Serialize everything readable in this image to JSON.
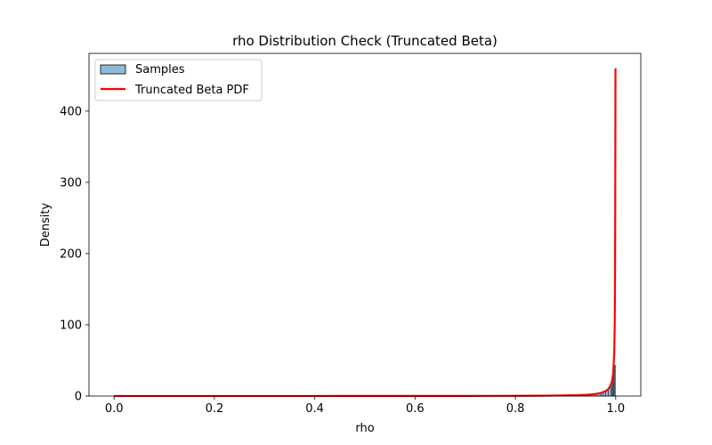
{
  "chart_data": {
    "type": "bar",
    "title": "rho Distribution Check (Truncated Beta)",
    "xlabel": "rho",
    "ylabel": "Density",
    "xlim": [
      -0.05,
      1.05
    ],
    "ylim": [
      0,
      481
    ],
    "grid": false,
    "legend_placement": "top-left",
    "xticks": [
      0.0,
      0.2,
      0.4,
      0.6,
      0.8,
      1.0
    ],
    "xtick_labels": [
      "0.0",
      "0.2",
      "0.4",
      "0.6",
      "0.8",
      "1.0"
    ],
    "yticks": [
      0,
      100,
      200,
      300,
      400
    ],
    "ytick_labels": [
      "0",
      "100",
      "200",
      "300",
      "400"
    ],
    "histogram": {
      "name": "Samples",
      "bin_edges": [
        0.9,
        0.91,
        0.92,
        0.93,
        0.94,
        0.95,
        0.96,
        0.97,
        0.975,
        0.98,
        0.985,
        0.99,
        0.992,
        0.994,
        0.996,
        0.998,
        1.0
      ],
      "values": [
        0.5,
        0.7,
        0.9,
        1.2,
        1.6,
        2.2,
        3.0,
        4.2,
        5.5,
        7.5,
        10.5,
        15.0,
        20.0,
        28.0,
        36.0,
        43.0
      ],
      "color": "#1f77b4",
      "alpha": 0.5,
      "edge_color": "#000000"
    },
    "series": [
      {
        "name": "Truncated Beta PDF",
        "type": "line",
        "color": "#ff0000",
        "x": [
          0.0,
          0.1,
          0.2,
          0.3,
          0.4,
          0.5,
          0.6,
          0.7,
          0.75,
          0.8,
          0.85,
          0.88,
          0.9,
          0.92,
          0.94,
          0.95,
          0.96,
          0.97,
          0.98,
          0.985,
          0.99,
          0.993,
          0.995,
          0.997,
          0.998,
          0.9985,
          0.999,
          0.9995
        ],
        "y": [
          0.05,
          0.06,
          0.07,
          0.08,
          0.1,
          0.12,
          0.15,
          0.2,
          0.25,
          0.35,
          0.5,
          0.7,
          0.9,
          1.2,
          1.8,
          2.3,
          3.0,
          4.2,
          7.0,
          9.5,
          15.0,
          22.0,
          32.0,
          60.0,
          100.0,
          150.0,
          250.0,
          460.0
        ]
      }
    ],
    "legend": [
      {
        "label": "Samples",
        "kind": "patch",
        "color": "#1f77b4"
      },
      {
        "label": "Truncated Beta PDF",
        "kind": "line",
        "color": "#ff0000"
      }
    ]
  }
}
